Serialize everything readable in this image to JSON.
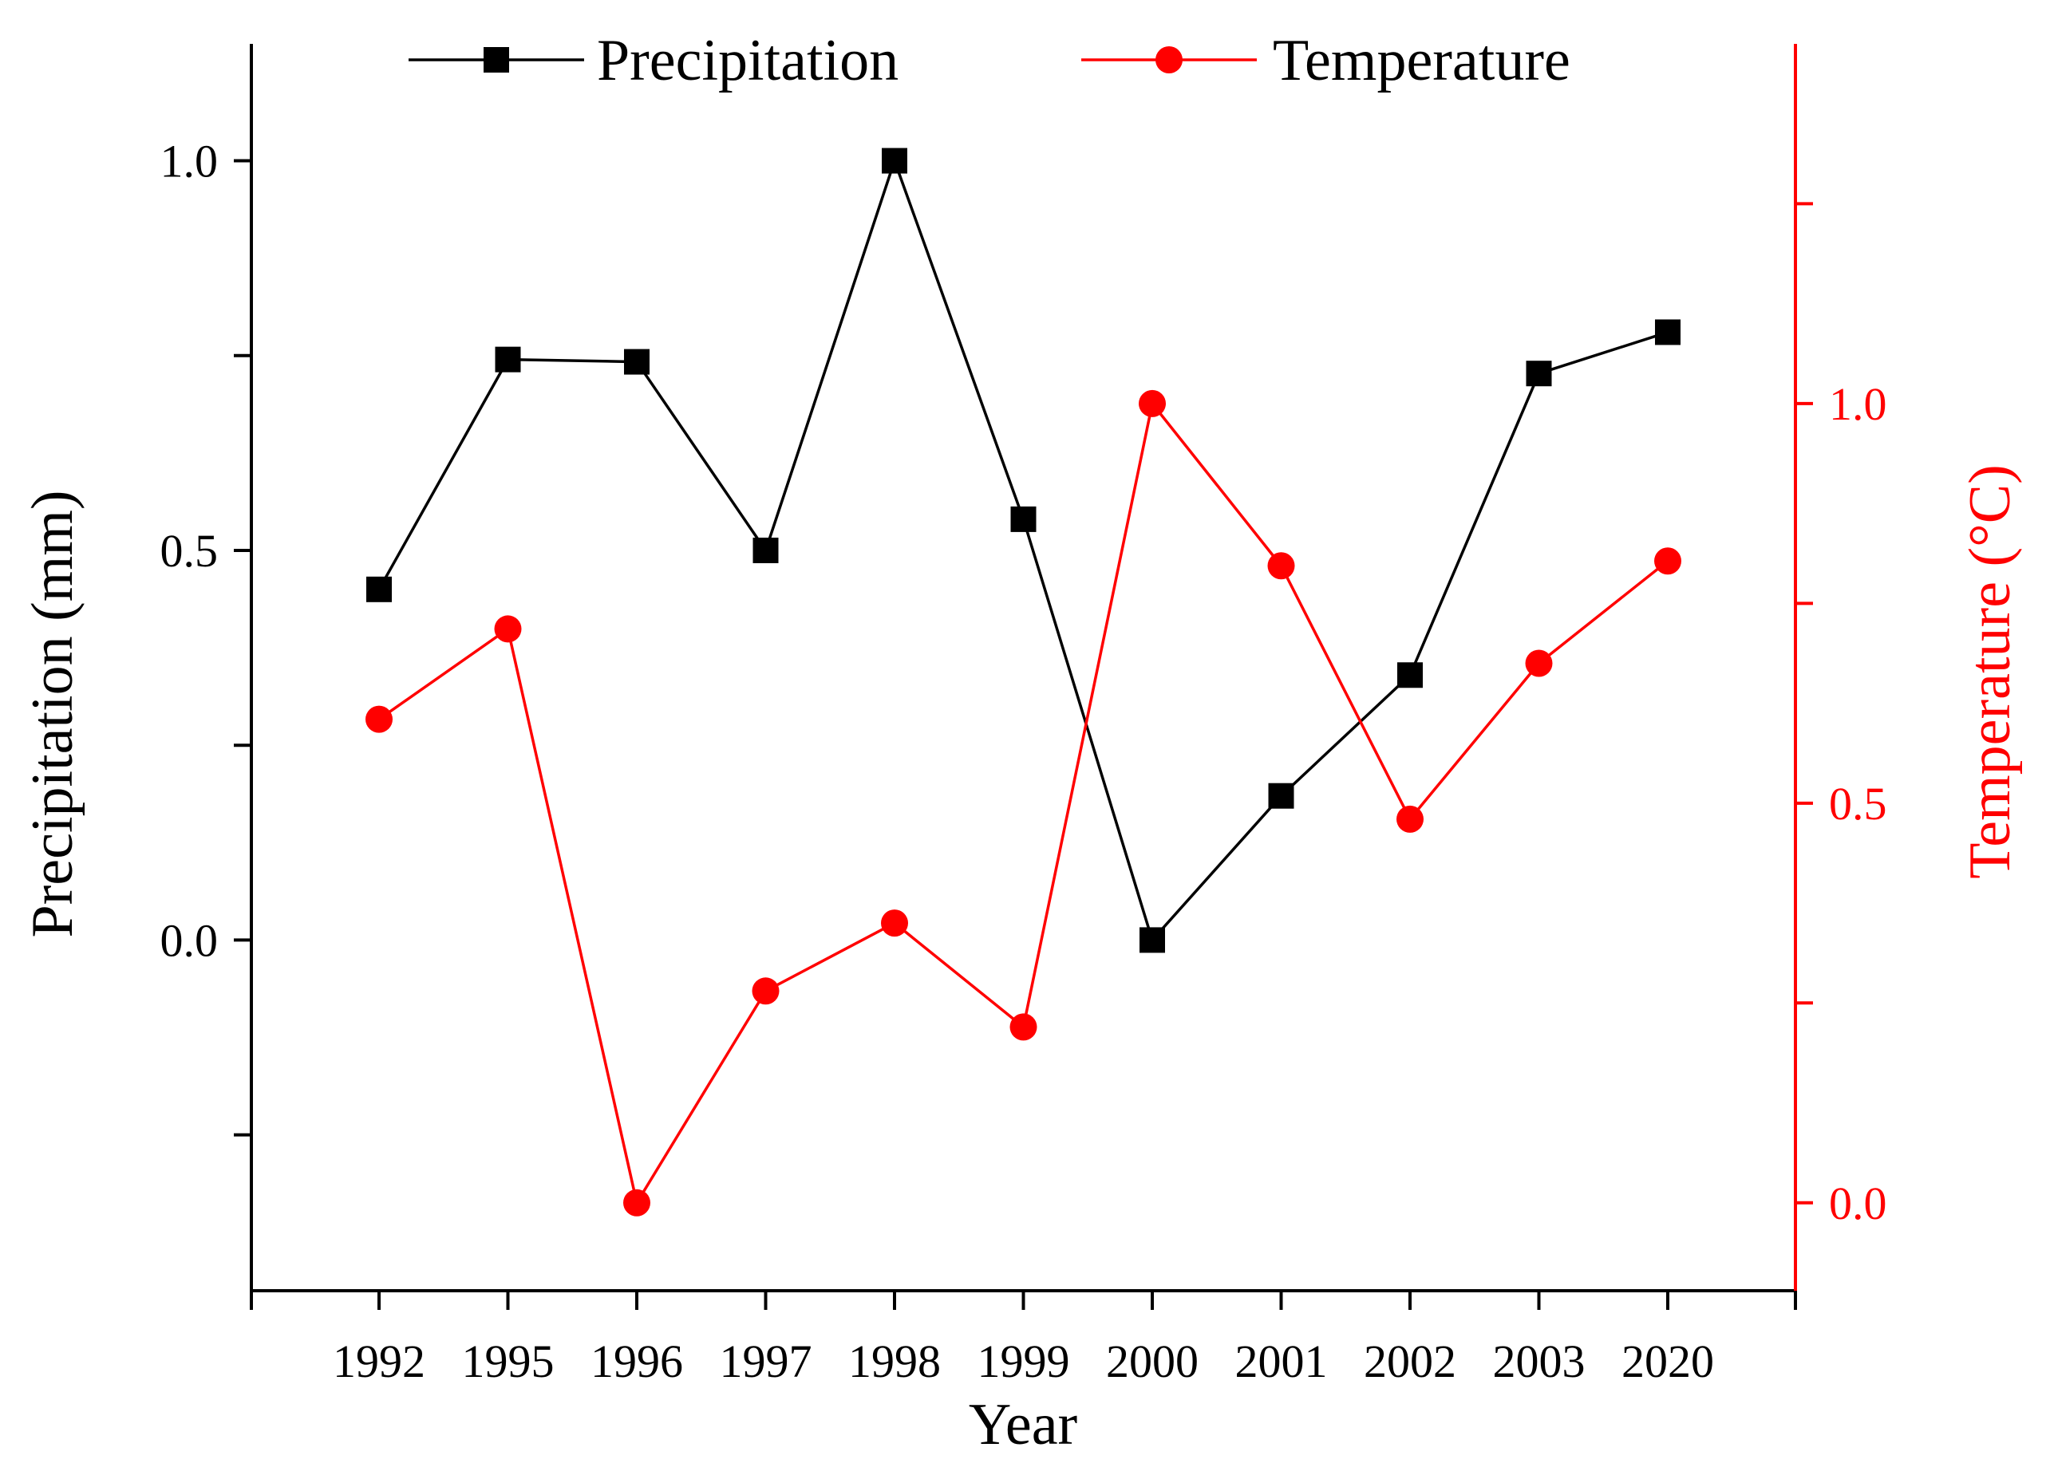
{
  "chart_data": {
    "type": "line",
    "categories": [
      "1992",
      "1995",
      "1996",
      "1997",
      "1998",
      "1999",
      "2000",
      "2001",
      "2002",
      "2003",
      "2020"
    ],
    "xlabel": "Year",
    "series": [
      {
        "name": "Precipitation",
        "axis": "left",
        "color": "#000000",
        "marker": "square",
        "values": [
          0.45,
          0.745,
          0.742,
          0.5,
          1.0,
          0.54,
          0.0,
          0.185,
          0.34,
          0.727,
          0.78
        ]
      },
      {
        "name": "Temperature",
        "axis": "right",
        "color": "#ff0000",
        "marker": "circle",
        "values": [
          0.605,
          0.718,
          0.0,
          0.265,
          0.35,
          0.22,
          1.0,
          0.797,
          0.48,
          0.675,
          0.803
        ]
      }
    ],
    "left_axis": {
      "label": "Precipitation (mm)",
      "range": [
        -0.45,
        1.15
      ],
      "ticks": [
        -0.25,
        0.0,
        0.25,
        0.5,
        0.75,
        1.0
      ],
      "tick_labels": [
        "",
        "0.0",
        "",
        "0.5",
        "",
        "1.0"
      ],
      "color": "#000000"
    },
    "right_axis": {
      "label": "Temperature (°C)",
      "range": [
        -0.11,
        1.45
      ],
      "ticks": [
        0.0,
        0.25,
        0.5,
        0.75,
        1.0,
        1.25
      ],
      "tick_labels": [
        "0.0",
        "",
        "0.5",
        "",
        "1.0",
        ""
      ],
      "color": "#ff0000"
    },
    "legend": {
      "position": "top",
      "entries": [
        "Precipitation",
        "Temperature"
      ]
    },
    "grid": false
  }
}
